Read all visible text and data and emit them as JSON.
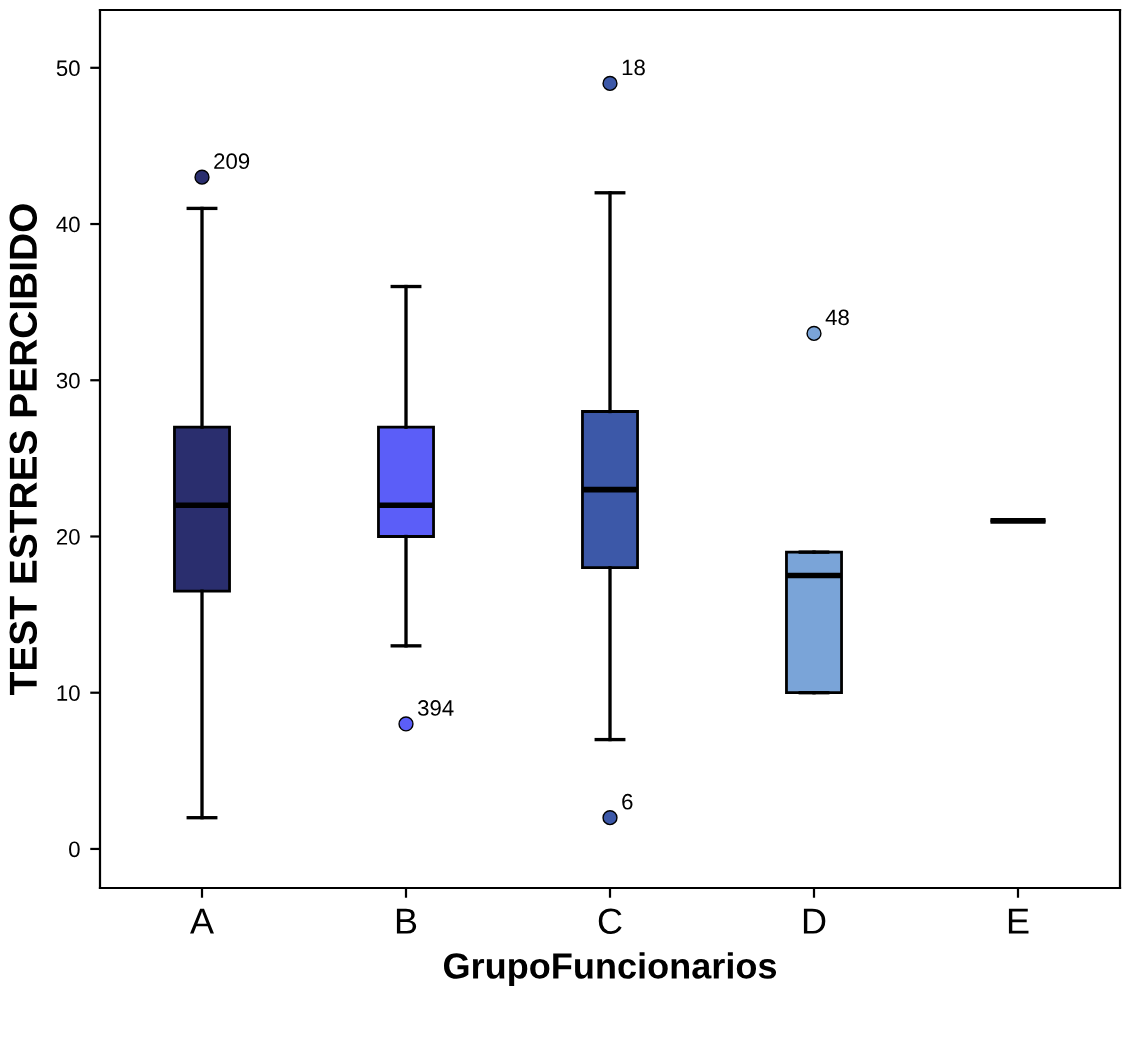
{
  "chart_data": {
    "type": "box",
    "xlabel": "GrupoFuncionarios",
    "ylabel": "TEST ESTRES PERCIBIDO",
    "categories": [
      "A",
      "B",
      "C",
      "D",
      "E"
    ],
    "boxes": [
      {
        "low": 2,
        "q1": 16.5,
        "median": 22,
        "q3": 27,
        "high": 41,
        "outliers": [
          43
        ]
      },
      {
        "low": 13,
        "q1": 20,
        "median": 22,
        "q3": 27,
        "high": 36,
        "outliers": [
          8
        ]
      },
      {
        "low": 7,
        "q1": 18,
        "median": 23,
        "q3": 28,
        "high": 42,
        "outliers": [
          49,
          2
        ]
      },
      {
        "low": 10,
        "q1": 10,
        "median": 17.5,
        "q3": 19,
        "high": 19,
        "outliers": [
          33
        ]
      },
      {
        "low": 21,
        "q1": 21,
        "median": 21,
        "q3": 21,
        "high": 21
      }
    ],
    "colors": [
      "#2a2e6e",
      "#5b5ef8",
      "#3c58a8",
      "#7aa4d8",
      null
    ],
    "ylim": [
      -2.5,
      53.7
    ],
    "yticks": [
      0,
      10,
      20,
      30,
      40,
      50
    ],
    "grid": false,
    "annotations": [
      "209",
      "394",
      "18",
      "6",
      "48"
    ]
  }
}
